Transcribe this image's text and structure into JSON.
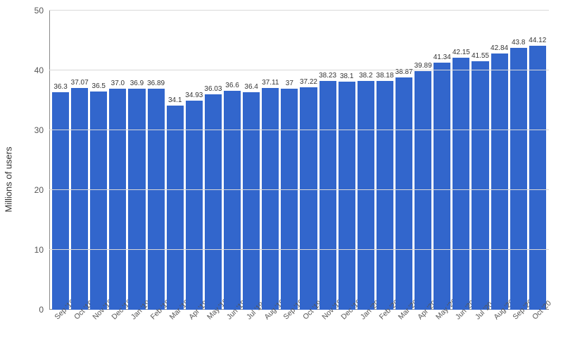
{
  "chart": {
    "type": "bar",
    "y_axis_label": "Millions of users",
    "ylim": [
      0,
      50
    ],
    "yticks": [
      0,
      10,
      20,
      30,
      40,
      50
    ],
    "bar_color": "#3266cc",
    "grid_color": "#d9d9d9",
    "axis_color": "#8a8a8a",
    "background_color": "#ffffff",
    "label_fontsize": 13,
    "tick_fontsize": 12,
    "value_fontsize": 10,
    "bar_width_ratio": 0.88,
    "categories": [
      "Sep '18",
      "Oct '18",
      "Nov '18",
      "Dec '18",
      "Jan '19",
      "Feb '19",
      "Mar '19",
      "Apr '19",
      "May '19",
      "Jun '19",
      "Jul '19",
      "Aug '19",
      "Sep '19",
      "Oct '19",
      "Nov '19",
      "Dec '19",
      "Jan '20",
      "Feb '20",
      "Mar '20",
      "Apr '20",
      "May '20",
      "Jun '20",
      "Jul '20",
      "Aug '20",
      "Sep '20",
      "Oct '20"
    ],
    "values": [
      36.3,
      37.07,
      36.5,
      37.0,
      36.9,
      36.89,
      34.1,
      34.93,
      36.03,
      36.6,
      36.4,
      37.11,
      37,
      37.22,
      38.23,
      38.1,
      38.2,
      38.18,
      38.87,
      39.89,
      41.34,
      42.15,
      41.55,
      42.84,
      43.8,
      44.12
    ],
    "value_labels": [
      "36.3",
      "37.07",
      "36.5",
      "37.0",
      "36.9",
      "36.89",
      "34.1",
      "34.93",
      "36.03",
      "36.6",
      "36.4",
      "37.11",
      "37",
      "37.22",
      "38.23",
      "38.1",
      "38.2",
      "38.18",
      "38.87",
      "39.89",
      "41.34",
      "42.15",
      "41.55",
      "42.84",
      "43.8",
      "44.12"
    ]
  }
}
